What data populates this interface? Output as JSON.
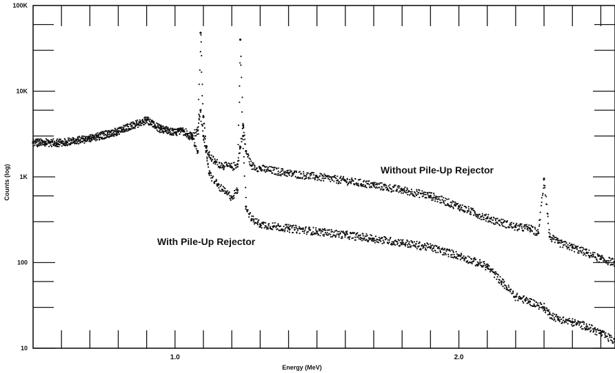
{
  "chart_data": {
    "type": "scatter",
    "xlabel": "Energy (MeV)",
    "ylabel": "Counts (log)",
    "xlim": [
      0.5,
      2.55
    ],
    "ylim": [
      10,
      100000
    ],
    "yscale": "log",
    "x_ticks": [
      {
        "value": 1.0,
        "label": "1.0"
      },
      {
        "value": 2.0,
        "label": "2.0"
      }
    ],
    "y_ticks": [
      {
        "value": 10,
        "label": "10"
      },
      {
        "value": 100,
        "label": "100"
      },
      {
        "value": 1000,
        "label": "1K"
      },
      {
        "value": 10000,
        "label": "10K"
      },
      {
        "value": 100000,
        "label": "100K"
      }
    ],
    "grid": false,
    "annotations": [
      {
        "text": "Without Pile-Up Rejector",
        "x": 1.75,
        "y": 1150
      },
      {
        "text": "With Pile-Up Rejector",
        "x": 0.95,
        "y": 220
      }
    ],
    "series": [
      {
        "name": "Without Pile-Up Rejector",
        "x": [
          0.5,
          0.6,
          0.7,
          0.8,
          0.9,
          0.95,
          1.0,
          1.03,
          1.06,
          1.08,
          1.09,
          1.1,
          1.11,
          1.12,
          1.14,
          1.17,
          1.2,
          1.22,
          1.23,
          1.24,
          1.25,
          1.27,
          1.3,
          1.4,
          1.5,
          1.6,
          1.7,
          1.8,
          1.9,
          2.0,
          2.1,
          2.2,
          2.25,
          2.28,
          2.3,
          2.32,
          2.35,
          2.4,
          2.45,
          2.5,
          2.55
        ],
        "y": [
          2500,
          2500,
          2800,
          3400,
          4600,
          3600,
          3300,
          3400,
          3000,
          3500,
          6000,
          3000,
          2200,
          1800,
          1500,
          1350,
          1300,
          1400,
          2200,
          4000,
          2000,
          1350,
          1250,
          1100,
          1000,
          900,
          800,
          700,
          600,
          450,
          330,
          260,
          250,
          220,
          950,
          200,
          170,
          150,
          130,
          110,
          100
        ]
      },
      {
        "name": "With Pile-Up Rejector",
        "x": [
          0.5,
          0.6,
          0.7,
          0.8,
          0.9,
          0.95,
          1.0,
          1.03,
          1.06,
          1.08,
          1.09,
          1.1,
          1.11,
          1.12,
          1.15,
          1.18,
          1.2,
          1.22,
          1.23,
          1.24,
          1.25,
          1.27,
          1.3,
          1.4,
          1.5,
          1.6,
          1.7,
          1.8,
          1.9,
          2.0,
          2.1,
          2.15,
          2.2,
          2.25,
          2.3,
          2.32,
          2.35,
          2.4,
          2.45,
          2.5,
          2.55
        ],
        "y": [
          2500,
          2500,
          2800,
          3400,
          4600,
          3600,
          3300,
          3400,
          2900,
          2000,
          48000,
          5000,
          2000,
          1100,
          800,
          650,
          580,
          700,
          40000,
          3000,
          450,
          320,
          280,
          250,
          230,
          210,
          190,
          170,
          150,
          120,
          90,
          60,
          40,
          35,
          30,
          25,
          22,
          20,
          18,
          15,
          12
        ]
      }
    ]
  }
}
